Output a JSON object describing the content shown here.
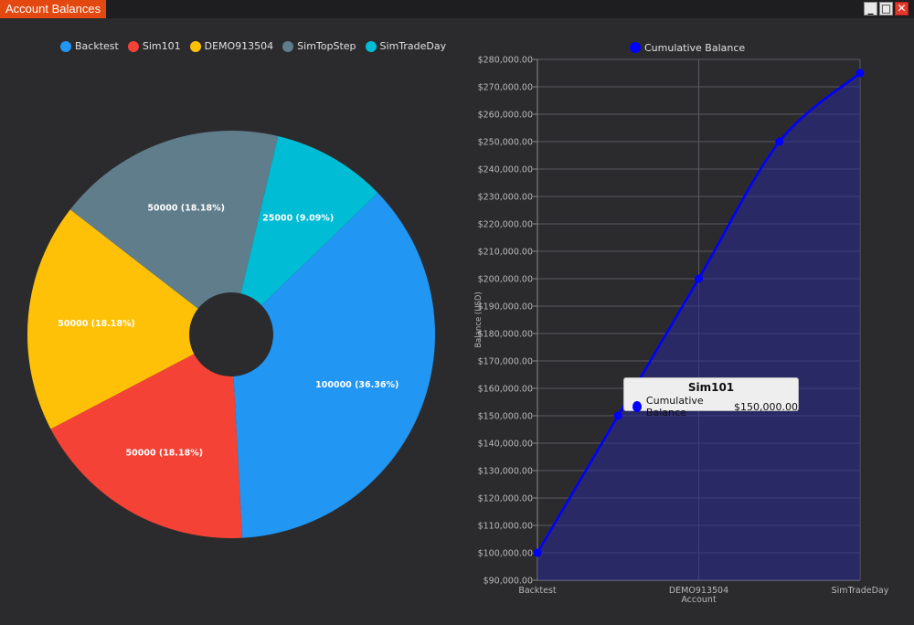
{
  "window": {
    "title": "Account Balances",
    "buttons": {
      "minimize": "_",
      "maximize": "□",
      "close": "✕"
    }
  },
  "pie_legend": [
    {
      "label": "Backtest",
      "color": "#2196f3"
    },
    {
      "label": "Sim101",
      "color": "#f44336"
    },
    {
      "label": "DEMO913504",
      "color": "#ffc107"
    },
    {
      "label": "SimTopStep",
      "color": "#607d8b"
    },
    {
      "label": "SimTradeDay",
      "color": "#00bcd4"
    }
  ],
  "line_legend": {
    "label": "Cumulative Balance",
    "color": "#0000ff"
  },
  "tooltip": {
    "title": "Sim101",
    "series": "Cumulative Balance",
    "value": "$150,000.00"
  },
  "chart_data": [
    {
      "type": "pie",
      "donut": true,
      "slices": [
        {
          "name": "Backtest",
          "value": 100000,
          "label": "100000 (36.36%)",
          "color": "#2196f3"
        },
        {
          "name": "Sim101",
          "value": 50000,
          "label": "50000 (18.18%)",
          "color": "#f44336"
        },
        {
          "name": "DEMO913504",
          "value": 50000,
          "label": "50000 (18.18%)",
          "color": "#ffc107"
        },
        {
          "name": "SimTopStep",
          "value": 50000,
          "label": "50000 (18.18%)",
          "color": "#607d8b"
        },
        {
          "name": "SimTradeDay",
          "value": 25000,
          "label": "25000 (9.09%)",
          "color": "#00bcd4"
        }
      ],
      "legend": "top"
    },
    {
      "type": "area",
      "x": [
        "Backtest",
        "Sim101",
        "DEMO913504",
        "SimTopStep",
        "SimTradeDay"
      ],
      "x_tick_labels": [
        "Backtest",
        "DEMO913504",
        "SimTradeDay"
      ],
      "series": [
        {
          "name": "Cumulative Balance",
          "values": [
            100000,
            150000,
            200000,
            250000,
            275000
          ],
          "color": "#0000ff"
        }
      ],
      "xlabel": "Account",
      "ylabel": "Balance (USD)",
      "ylim": [
        90000,
        280000
      ],
      "y_ticks": [
        "$90,000.00",
        "$100,000.00",
        "$110,000.00",
        "$120,000.00",
        "$130,000.00",
        "$140,000.00",
        "$150,000.00",
        "$160,000.00",
        "$170,000.00",
        "$180,000.00",
        "$190,000.00",
        "$200,000.00",
        "$210,000.00",
        "$220,000.00",
        "$230,000.00",
        "$240,000.00",
        "$250,000.00",
        "$260,000.00",
        "$270,000.00",
        "$280,000.00"
      ],
      "grid": true,
      "legend": "top"
    }
  ]
}
